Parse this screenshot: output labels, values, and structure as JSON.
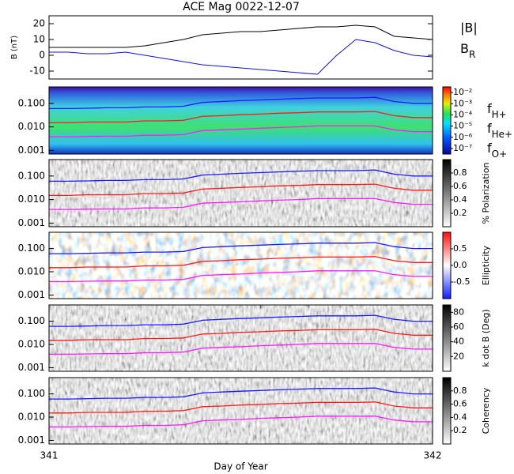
{
  "chart_data": [
    {
      "type": "line",
      "title": "ACE Mag 0022-12-07",
      "ylabel": "B (nT)",
      "x": [
        341.0,
        341.05,
        341.1,
        341.15,
        341.2,
        341.25,
        341.3,
        341.35,
        341.4,
        341.45,
        341.5,
        341.55,
        341.6,
        341.65,
        341.7,
        341.75,
        341.8,
        341.85,
        341.9,
        341.95,
        342.0
      ],
      "xlim": [
        341,
        342
      ],
      "ylim": [
        -15,
        25
      ],
      "yticks": [
        -10,
        0,
        10,
        20
      ],
      "series": [
        {
          "name": "|B|",
          "color": "#000000",
          "values": [
            5,
            5,
            5,
            5,
            5,
            6,
            8,
            10,
            13,
            14,
            15,
            15,
            16,
            17,
            18,
            18,
            19,
            18,
            12,
            11,
            10
          ]
        },
        {
          "name": "BR",
          "color": "#1010e0",
          "values": [
            2,
            2,
            1,
            1,
            2,
            0,
            -2,
            -4,
            -6,
            -7,
            -8,
            -9,
            -10,
            -11,
            -12,
            0,
            10,
            8,
            3,
            0,
            -1
          ]
        }
      ]
    },
    {
      "type": "spectrogram",
      "colormap": "rainbow",
      "log_y": true,
      "xlim": [
        341,
        342
      ],
      "ylim": [
        0.0007,
        0.5
      ],
      "yticks": [
        0.001,
        {
          "value": 0.01,
          "label": "0.010"
        },
        {
          "value": 0.1,
          "label": "0.100"
        }
      ],
      "clim": [
        -7.5,
        -1.5
      ],
      "cticks": [
        {
          "value": -2,
          "label": "10⁻²"
        },
        {
          "value": -3,
          "label": "10⁻³"
        },
        {
          "value": -4,
          "label": "10⁻⁴"
        },
        {
          "value": -5,
          "label": "10⁻⁵"
        },
        {
          "value": -6,
          "label": "10⁻⁶"
        },
        {
          "value": -7,
          "label": "10⁻⁷"
        }
      ],
      "x": [
        341.0,
        341.05,
        341.1,
        341.15,
        341.2,
        341.25,
        341.3,
        341.35,
        341.4,
        341.45,
        341.5,
        341.55,
        341.6,
        341.65,
        341.7,
        341.75,
        341.8,
        341.85,
        341.9,
        341.95,
        342.0
      ],
      "series": [
        {
          "name": "fH+",
          "color": "#1a1aff",
          "values": [
            0.06,
            0.06,
            0.062,
            0.065,
            0.065,
            0.07,
            0.07,
            0.075,
            0.11,
            0.12,
            0.13,
            0.14,
            0.15,
            0.16,
            0.17,
            0.17,
            0.17,
            0.18,
            0.12,
            0.1,
            0.1
          ]
        },
        {
          "name": "fHe+",
          "color": "#ff1a1a",
          "values": [
            0.015,
            0.015,
            0.016,
            0.016,
            0.016,
            0.018,
            0.018,
            0.019,
            0.028,
            0.03,
            0.033,
            0.035,
            0.038,
            0.04,
            0.043,
            0.043,
            0.043,
            0.045,
            0.03,
            0.025,
            0.025
          ]
        },
        {
          "name": "fO+",
          "color": "#ff1aff",
          "values": [
            0.0038,
            0.0038,
            0.0039,
            0.004,
            0.004,
            0.0044,
            0.0044,
            0.0047,
            0.007,
            0.0075,
            0.008,
            0.0088,
            0.0094,
            0.01,
            0.011,
            0.011,
            0.011,
            0.011,
            0.0075,
            0.0063,
            0.0063
          ]
        }
      ]
    },
    {
      "type": "spectrogram",
      "colormap": "gray",
      "colorbar_label": "% Polarization",
      "clim": [
        0,
        1
      ],
      "cticks": [
        0.2,
        0.4,
        0.6,
        0.8
      ]
    },
    {
      "type": "spectrogram",
      "colormap": "bwr",
      "colorbar_label": "Ellipticity",
      "clim": [
        -1,
        1
      ],
      "cticks": [
        -0.5,
        {
          "value": 0,
          "label": "0.0"
        },
        0.5
      ]
    },
    {
      "type": "spectrogram",
      "colormap": "gray",
      "colorbar_label": "k dot B (Deg)",
      "clim": [
        0,
        90
      ],
      "cticks": [
        20,
        40,
        60,
        80
      ]
    },
    {
      "type": "spectrogram",
      "colormap": "gray",
      "colorbar_label": "Coherency",
      "clim": [
        0,
        1
      ],
      "cticks": [
        0.2,
        0.4,
        0.6,
        0.8
      ],
      "xlabel": "Day of Year",
      "xticks": [
        341,
        342
      ]
    }
  ]
}
